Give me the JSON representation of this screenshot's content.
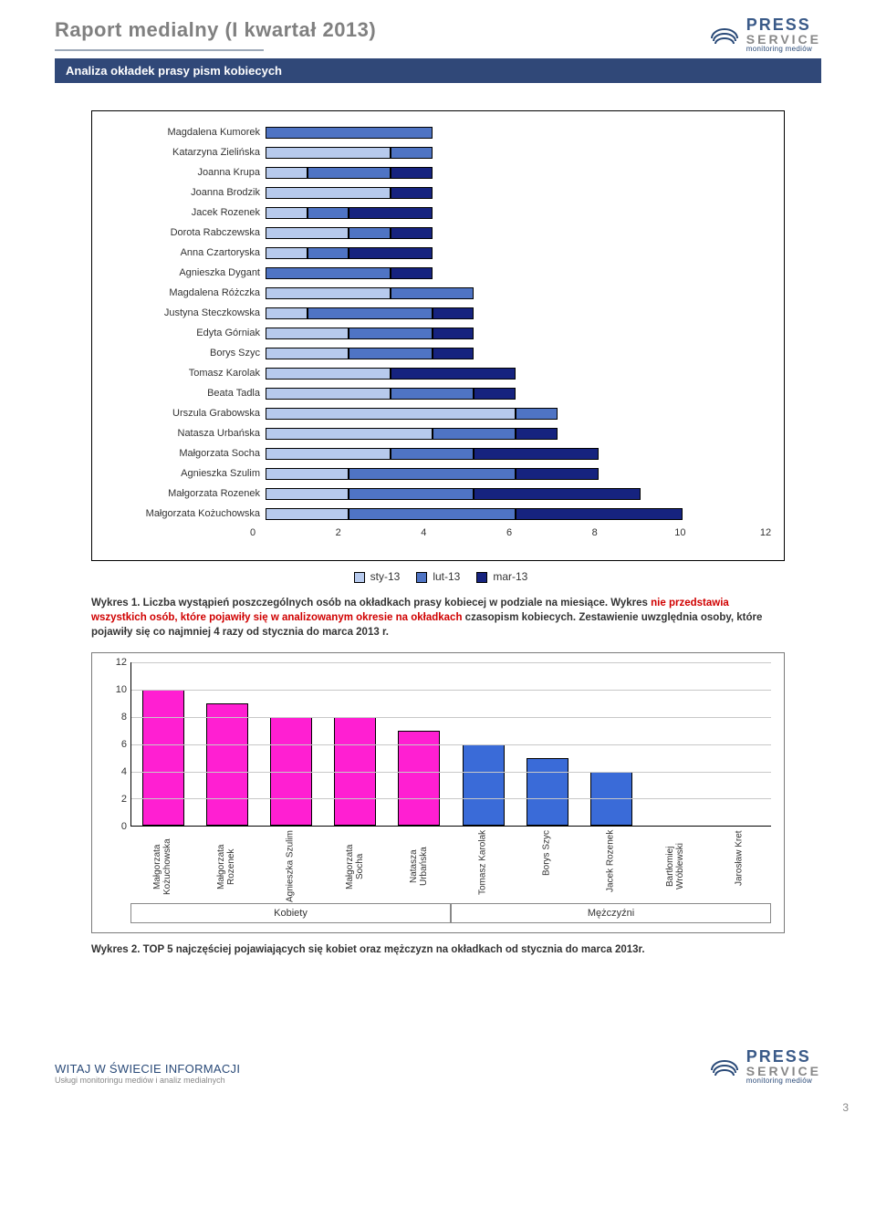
{
  "header": {
    "title": "Raport medialny (I kwartał 2013)",
    "subtitle": "Analiza okładek prasy pism kobiecych",
    "logo_press": "PRESS",
    "logo_service": "SERVICE",
    "logo_tag": "monitoring mediów"
  },
  "chart1": {
    "type": "stacked_horizontal_bar",
    "x_max": 12,
    "x_ticks": [
      0,
      2,
      4,
      6,
      8,
      10,
      12
    ],
    "series": [
      {
        "id": "sty-13",
        "label": "sty-13",
        "color": "#b7caed"
      },
      {
        "id": "lut-13",
        "label": "lut-13",
        "color": "#4f74c4"
      },
      {
        "id": "mar-13",
        "label": "mar-13",
        "color": "#16237f"
      }
    ],
    "rows": [
      {
        "label": "Magdalena Kumorek",
        "values": [
          0,
          4,
          0
        ]
      },
      {
        "label": "Katarzyna Zielińska",
        "values": [
          3,
          1,
          0
        ]
      },
      {
        "label": "Joanna Krupa",
        "values": [
          1,
          2,
          1
        ]
      },
      {
        "label": "Joanna Brodzik",
        "values": [
          3,
          0,
          1
        ]
      },
      {
        "label": "Jacek Rozenek",
        "values": [
          1,
          1,
          2
        ]
      },
      {
        "label": "Dorota Rabczewska",
        "values": [
          2,
          1,
          1
        ]
      },
      {
        "label": "Anna Czartoryska",
        "values": [
          1,
          1,
          2
        ]
      },
      {
        "label": "Agnieszka Dygant",
        "values": [
          0,
          3,
          1
        ]
      },
      {
        "label": "Magdalena Różczka",
        "values": [
          3,
          2,
          0
        ]
      },
      {
        "label": "Justyna Steczkowska",
        "values": [
          1,
          3,
          1
        ]
      },
      {
        "label": "Edyta Górniak",
        "values": [
          2,
          2,
          1
        ]
      },
      {
        "label": "Borys Szyc",
        "values": [
          2,
          2,
          1
        ]
      },
      {
        "label": "Tomasz Karolak",
        "values": [
          3,
          0,
          3
        ]
      },
      {
        "label": "Beata Tadla",
        "values": [
          3,
          2,
          1
        ]
      },
      {
        "label": "Urszula Grabowska",
        "values": [
          6,
          1,
          0
        ]
      },
      {
        "label": "Natasza Urbańska",
        "values": [
          4,
          2,
          1
        ]
      },
      {
        "label": "Małgorzata Socha",
        "values": [
          3,
          2,
          3
        ]
      },
      {
        "label": "Agnieszka Szulim",
        "values": [
          2,
          4,
          2
        ]
      },
      {
        "label": "Małgorzata Rozenek",
        "values": [
          2,
          3,
          4
        ]
      },
      {
        "label": "Małgorzata Kożuchowska",
        "values": [
          2,
          4,
          4
        ]
      }
    ]
  },
  "caption1": {
    "prefix": "Wykres 1. Liczba wystąpień poszczególnych osób na okładkach prasy kobiecej w podziale na miesiące. Wykres",
    "red": "nie przedstawia wszystkich osób, które pojawiły się w analizowanym okresie na okładkach",
    "suffix1": " czasopism kobiecych. ",
    "suffix2": "Zestawienie uwzględnia osoby, które pojawiły się co najmniej 4 razy od stycznia do marca 2013 r."
  },
  "chart2": {
    "type": "bar",
    "y_max": 12,
    "y_ticks": [
      0,
      2,
      4,
      6,
      8,
      10,
      12
    ],
    "groups": [
      {
        "label": "Kobiety",
        "color": "#ff1fd2",
        "bars": [
          {
            "label": "Małgorzata Kożuchowska",
            "value": 10
          },
          {
            "label": "Małgorzata Rozenek",
            "value": 9
          },
          {
            "label": "Agnieszka Szulim",
            "value": 8
          },
          {
            "label": "Małgorzata Socha",
            "value": 8
          },
          {
            "label": "Natasza Urbańska",
            "value": 7
          }
        ]
      },
      {
        "label": "Mężczyźni",
        "color": "#3a6bd8",
        "bars": [
          {
            "label": "Tomasz Karolak",
            "value": 6
          },
          {
            "label": "Borys Szyc",
            "value": 5
          },
          {
            "label": "Jacek Rozenek",
            "value": 4
          },
          {
            "label": "Bartłomiej Wróblewski",
            "value": 0
          },
          {
            "label": "Jarosław Kret",
            "value": 0
          }
        ]
      }
    ]
  },
  "caption2": "Wykres 2. TOP 5 najczęściej pojawiających się kobiet oraz mężczyzn na okładkach od stycznia do marca 2013r.",
  "footer": {
    "title": "WITAJ W ŚWIECIE INFORMACJI",
    "sub": "Usługi monitoringu mediów i analiz medialnych",
    "page": "3"
  }
}
